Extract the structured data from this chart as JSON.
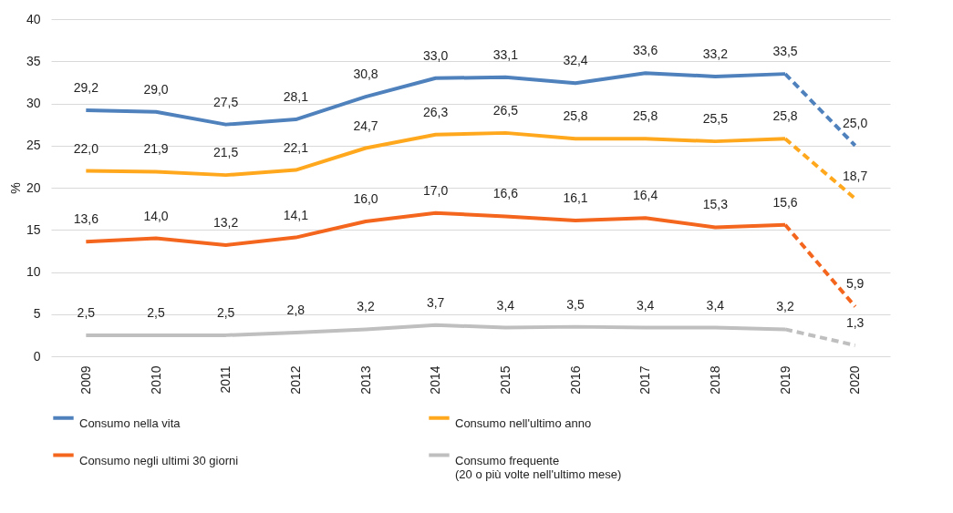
{
  "chart_data": {
    "type": "line",
    "ylabel": "%",
    "categories": [
      "2009",
      "2010",
      "2011",
      "2012",
      "2013",
      "2014",
      "2015",
      "2016",
      "2017",
      "2018",
      "2019",
      "2020"
    ],
    "ylim": [
      0,
      40
    ],
    "yticks": [
      0,
      5,
      10,
      15,
      20,
      25,
      30,
      35,
      40
    ],
    "grid": "y",
    "legend": "bottom",
    "marker": "none",
    "series": [
      {
        "name": "Consumo nella vita",
        "color": "#4f81bd",
        "line_style": "solid",
        "values": [
          29.2,
          29.0,
          27.5,
          28.1,
          30.8,
          33.0,
          33.1,
          32.4,
          33.6,
          33.2,
          33.5,
          null
        ],
        "value_labels": [
          "29,2",
          "29,0",
          "27,5",
          "28,1",
          "30,8",
          "33,0",
          "33,1",
          "32,4",
          "33,6",
          "33,2",
          "33,5",
          null
        ]
      },
      {
        "name": "Consumo nell'ultimo anno",
        "color": "#ffa81e",
        "line_style": "solid",
        "values": [
          22.0,
          21.9,
          21.5,
          22.1,
          24.7,
          26.3,
          26.5,
          25.8,
          25.8,
          25.5,
          25.8,
          null
        ],
        "value_labels": [
          "22,0",
          "21,9",
          "21,5",
          "22,1",
          "24,7",
          "26,3",
          "26,5",
          "25,8",
          "25,8",
          "25,5",
          "25,8",
          null
        ]
      },
      {
        "name": "Consumo negli ultimi 30 giorni",
        "color": "#f4661e",
        "line_style": "solid",
        "values": [
          13.6,
          14.0,
          13.2,
          14.1,
          16.0,
          17.0,
          16.6,
          16.1,
          16.4,
          15.3,
          15.6,
          null
        ],
        "value_labels": [
          "13,6",
          "14,0",
          "13,2",
          "14,1",
          "16,0",
          "17,0",
          "16,6",
          "16,1",
          "16,4",
          "15,3",
          "15,6",
          null
        ]
      },
      {
        "name": "Consumo frequente\n(20 o più volte nell'ultimo mese)",
        "color": "#bfbfbf",
        "line_style": "solid",
        "values": [
          2.5,
          2.5,
          2.5,
          2.8,
          3.2,
          3.7,
          3.4,
          3.5,
          3.4,
          3.4,
          3.2,
          null
        ],
        "value_labels": [
          "2,5",
          "2,5",
          "2,5",
          "2,8",
          "3,2",
          "3,7",
          "3,4",
          "3,5",
          "3,4",
          "3,4",
          "3,2",
          null
        ]
      },
      {
        "color": "#4f81bd",
        "line_style": "dashed",
        "values": [
          null,
          null,
          null,
          null,
          null,
          null,
          null,
          null,
          null,
          null,
          33.5,
          25.0
        ],
        "value_labels": [
          null,
          null,
          null,
          null,
          null,
          null,
          null,
          null,
          null,
          null,
          null,
          "25,0"
        ]
      },
      {
        "color": "#ffa81e",
        "line_style": "dashed",
        "values": [
          null,
          null,
          null,
          null,
          null,
          null,
          null,
          null,
          null,
          null,
          25.8,
          18.7
        ],
        "value_labels": [
          null,
          null,
          null,
          null,
          null,
          null,
          null,
          null,
          null,
          null,
          null,
          "18,7"
        ]
      },
      {
        "color": "#f4661e",
        "line_style": "dashed",
        "values": [
          null,
          null,
          null,
          null,
          null,
          null,
          null,
          null,
          null,
          null,
          15.6,
          5.9
        ],
        "value_labels": [
          null,
          null,
          null,
          null,
          null,
          null,
          null,
          null,
          null,
          null,
          null,
          "5,9"
        ]
      },
      {
        "color": "#bfbfbf",
        "line_style": "dashed",
        "values": [
          null,
          null,
          null,
          null,
          null,
          null,
          null,
          null,
          null,
          null,
          3.2,
          1.3
        ],
        "value_labels": [
          null,
          null,
          null,
          null,
          null,
          null,
          null,
          null,
          null,
          null,
          null,
          "1,3"
        ]
      }
    ]
  }
}
